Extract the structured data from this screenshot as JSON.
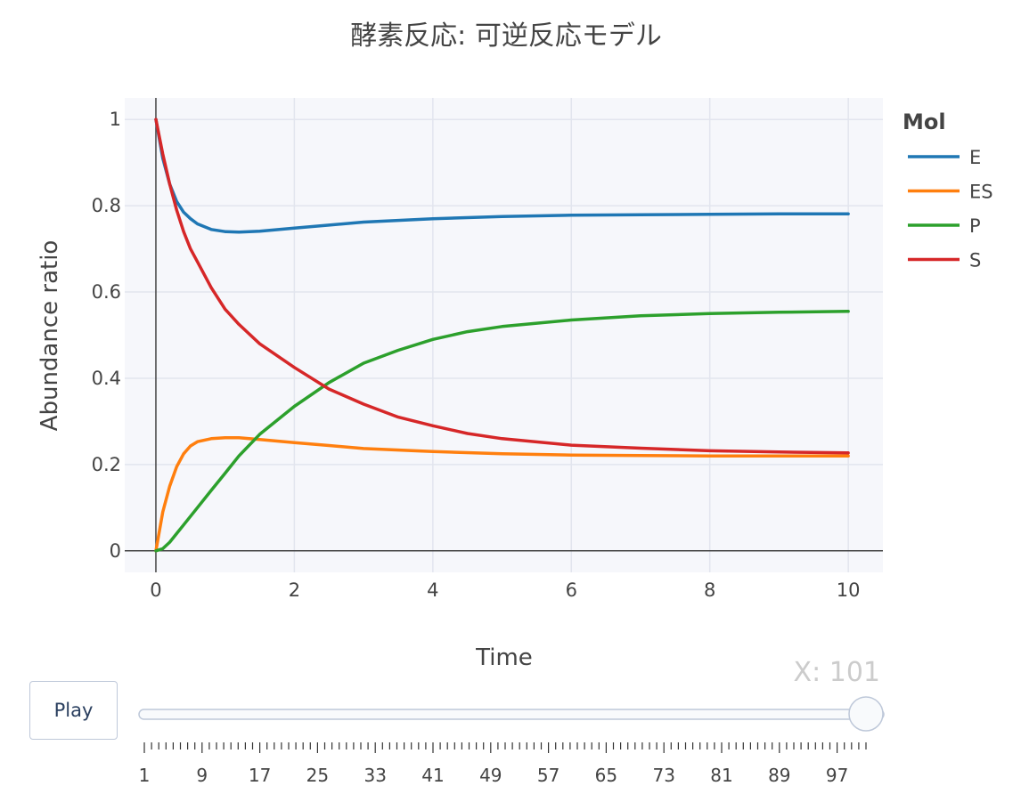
{
  "chart_data": {
    "type": "line",
    "title": "酵素反応: 可逆反応モデル",
    "xlabel": "Time",
    "ylabel": "Abundance ratio",
    "xlim": [
      -0.45,
      10.5
    ],
    "ylim": [
      -0.05,
      1.05
    ],
    "xticks": [
      0,
      2,
      4,
      6,
      8,
      10
    ],
    "yticks": [
      0,
      0.2,
      0.4,
      0.6,
      0.8,
      1
    ],
    "grid": true,
    "legend_title": "Mol",
    "legend_position": "right",
    "series": [
      {
        "name": "E",
        "color": "#1f77b4",
        "x": [
          0,
          0.1,
          0.2,
          0.3,
          0.4,
          0.5,
          0.6,
          0.8,
          1.0,
          1.2,
          1.5,
          2,
          2.5,
          3,
          4,
          5,
          6,
          7,
          8,
          9,
          10
        ],
        "y": [
          1,
          0.91,
          0.85,
          0.81,
          0.785,
          0.77,
          0.758,
          0.745,
          0.74,
          0.739,
          0.741,
          0.748,
          0.755,
          0.762,
          0.77,
          0.775,
          0.778,
          0.779,
          0.78,
          0.781,
          0.781
        ]
      },
      {
        "name": "ES",
        "color": "#ff7f0e",
        "x": [
          0,
          0.1,
          0.2,
          0.3,
          0.4,
          0.5,
          0.6,
          0.8,
          1.0,
          1.2,
          1.5,
          2,
          2.5,
          3,
          4,
          5,
          6,
          7,
          8,
          9,
          10
        ],
        "y": [
          0,
          0.09,
          0.15,
          0.195,
          0.225,
          0.243,
          0.253,
          0.26,
          0.262,
          0.262,
          0.258,
          0.251,
          0.244,
          0.237,
          0.23,
          0.225,
          0.222,
          0.221,
          0.22,
          0.22,
          0.22
        ]
      },
      {
        "name": "P",
        "color": "#2ca02c",
        "x": [
          0,
          0.1,
          0.2,
          0.3,
          0.4,
          0.6,
          0.8,
          1.0,
          1.2,
          1.5,
          2,
          2.5,
          3,
          3.5,
          4,
          4.5,
          5,
          6,
          7,
          8,
          9,
          10
        ],
        "y": [
          0,
          0.005,
          0.02,
          0.04,
          0.06,
          0.1,
          0.14,
          0.18,
          0.22,
          0.27,
          0.335,
          0.39,
          0.435,
          0.465,
          0.49,
          0.508,
          0.52,
          0.535,
          0.545,
          0.55,
          0.553,
          0.555
        ]
      },
      {
        "name": "S",
        "color": "#d62728",
        "x": [
          0,
          0.1,
          0.2,
          0.3,
          0.4,
          0.5,
          0.6,
          0.8,
          1.0,
          1.2,
          1.5,
          2,
          2.5,
          3,
          3.5,
          4,
          4.5,
          5,
          6,
          7,
          8,
          9,
          10
        ],
        "y": [
          1,
          0.92,
          0.85,
          0.79,
          0.74,
          0.7,
          0.67,
          0.61,
          0.56,
          0.525,
          0.48,
          0.425,
          0.375,
          0.34,
          0.31,
          0.29,
          0.272,
          0.26,
          0.245,
          0.238,
          0.232,
          0.229,
          0.227
        ]
      }
    ]
  },
  "controls": {
    "play_label": "Play",
    "slider": {
      "current_label": "X: 101",
      "current_value": 101,
      "min": 1,
      "max": 101,
      "tick_labels": [
        "1",
        "9",
        "17",
        "25",
        "33",
        "41",
        "49",
        "57",
        "65",
        "73",
        "81",
        "89",
        "97"
      ]
    }
  }
}
